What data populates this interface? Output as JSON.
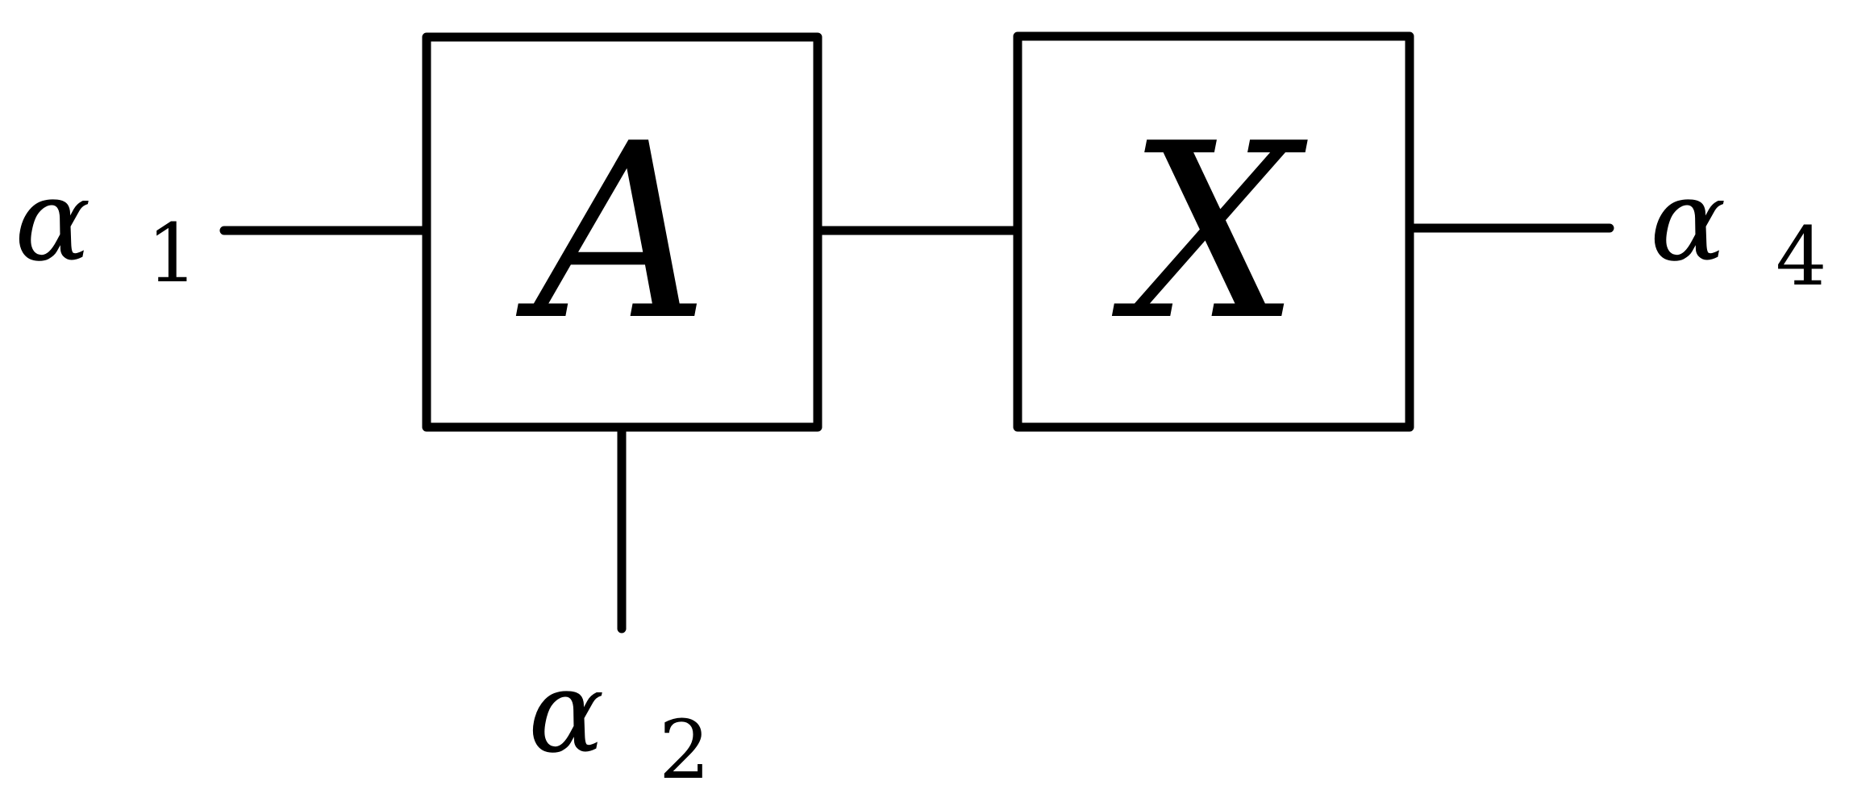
{
  "diagram": {
    "nodes": [
      {
        "id": "A",
        "label": "A"
      },
      {
        "id": "X",
        "label": "X"
      }
    ],
    "external_legs": [
      {
        "id": "alpha1",
        "symbol": "α",
        "subscript": "1",
        "attached_to": "A",
        "side": "left"
      },
      {
        "id": "alpha2",
        "symbol": "α",
        "subscript": "2",
        "attached_to": "A",
        "side": "bottom"
      },
      {
        "id": "alpha4",
        "symbol": "α",
        "subscript": "4",
        "attached_to": "X",
        "side": "right"
      }
    ],
    "internal_edges": [
      {
        "from": "A",
        "to": "X"
      }
    ]
  }
}
